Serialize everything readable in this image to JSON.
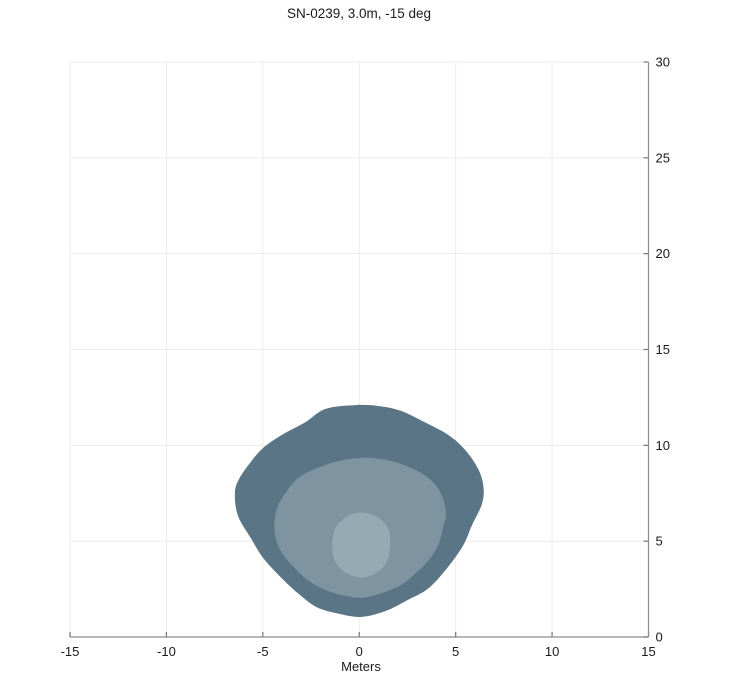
{
  "chart_data": {
    "type": "contour",
    "title": "SN-0239, 3.0m, -15 deg",
    "xlabel": "Meters",
    "ylabel": "",
    "xlim": [
      -15,
      15
    ],
    "ylim": [
      0,
      30
    ],
    "x_ticks": [
      -15,
      -10,
      -5,
      0,
      5,
      10,
      15
    ],
    "y_ticks": [
      0,
      5,
      10,
      15,
      20,
      25,
      30
    ],
    "grid": true,
    "y_axis_position": "right",
    "colors": {
      "axis": "#8c8c8c",
      "tick": "#777777",
      "grid": "#ebebeb",
      "text": "#1a1a1a",
      "background": "#ffffff"
    },
    "contours": [
      {
        "name": "outer-level",
        "fill": "#5a7585",
        "points": [
          [
            -0.2,
            12.1
          ],
          [
            -1.75,
            11.9
          ],
          [
            -2.8,
            11.2
          ],
          [
            -4.0,
            10.55
          ],
          [
            -5.0,
            9.85
          ],
          [
            -5.65,
            9.1
          ],
          [
            -6.2,
            8.3
          ],
          [
            -6.45,
            7.55
          ],
          [
            -6.3,
            6.35
          ],
          [
            -5.65,
            5.2
          ],
          [
            -5.0,
            4.15
          ],
          [
            -4.2,
            3.25
          ],
          [
            -3.2,
            2.3
          ],
          [
            -2.2,
            1.55
          ],
          [
            -1.0,
            1.2
          ],
          [
            0.15,
            1.05
          ],
          [
            1.35,
            1.35
          ],
          [
            2.55,
            1.95
          ],
          [
            3.6,
            2.55
          ],
          [
            4.6,
            3.65
          ],
          [
            5.4,
            4.8
          ],
          [
            5.85,
            5.85
          ],
          [
            6.35,
            6.9
          ],
          [
            6.45,
            7.75
          ],
          [
            6.2,
            8.7
          ],
          [
            5.5,
            9.75
          ],
          [
            4.6,
            10.55
          ],
          [
            3.4,
            11.2
          ],
          [
            2.15,
            11.8
          ],
          [
            1.0,
            12.05
          ]
        ]
      },
      {
        "name": "middle-level",
        "fill": "#7e95a1",
        "points": [
          [
            0.3,
            9.35
          ],
          [
            -1.0,
            9.2
          ],
          [
            -2.2,
            8.8
          ],
          [
            -3.15,
            8.3
          ],
          [
            -3.8,
            7.55
          ],
          [
            -4.25,
            6.75
          ],
          [
            -4.4,
            5.9
          ],
          [
            -4.3,
            5.05
          ],
          [
            -3.95,
            4.3
          ],
          [
            -3.35,
            3.6
          ],
          [
            -2.65,
            2.95
          ],
          [
            -1.75,
            2.45
          ],
          [
            -0.75,
            2.15
          ],
          [
            0.2,
            2.05
          ],
          [
            1.2,
            2.3
          ],
          [
            2.15,
            2.7
          ],
          [
            2.9,
            3.3
          ],
          [
            3.6,
            4.0
          ],
          [
            4.1,
            4.8
          ],
          [
            4.35,
            5.7
          ],
          [
            4.5,
            6.5
          ],
          [
            4.25,
            7.45
          ],
          [
            3.7,
            8.2
          ],
          [
            2.85,
            8.75
          ],
          [
            1.8,
            9.15
          ],
          [
            1.0,
            9.3
          ]
        ]
      },
      {
        "name": "inner-level",
        "fill": "#95a9b2",
        "points": [
          [
            0.1,
            6.5
          ],
          [
            0.95,
            6.25
          ],
          [
            1.5,
            5.65
          ],
          [
            1.6,
            4.8
          ],
          [
            1.45,
            3.95
          ],
          [
            0.9,
            3.35
          ],
          [
            0.1,
            3.1
          ],
          [
            -0.7,
            3.35
          ],
          [
            -1.25,
            3.95
          ],
          [
            -1.4,
            4.8
          ],
          [
            -1.25,
            5.65
          ],
          [
            -0.7,
            6.25
          ]
        ]
      }
    ]
  }
}
